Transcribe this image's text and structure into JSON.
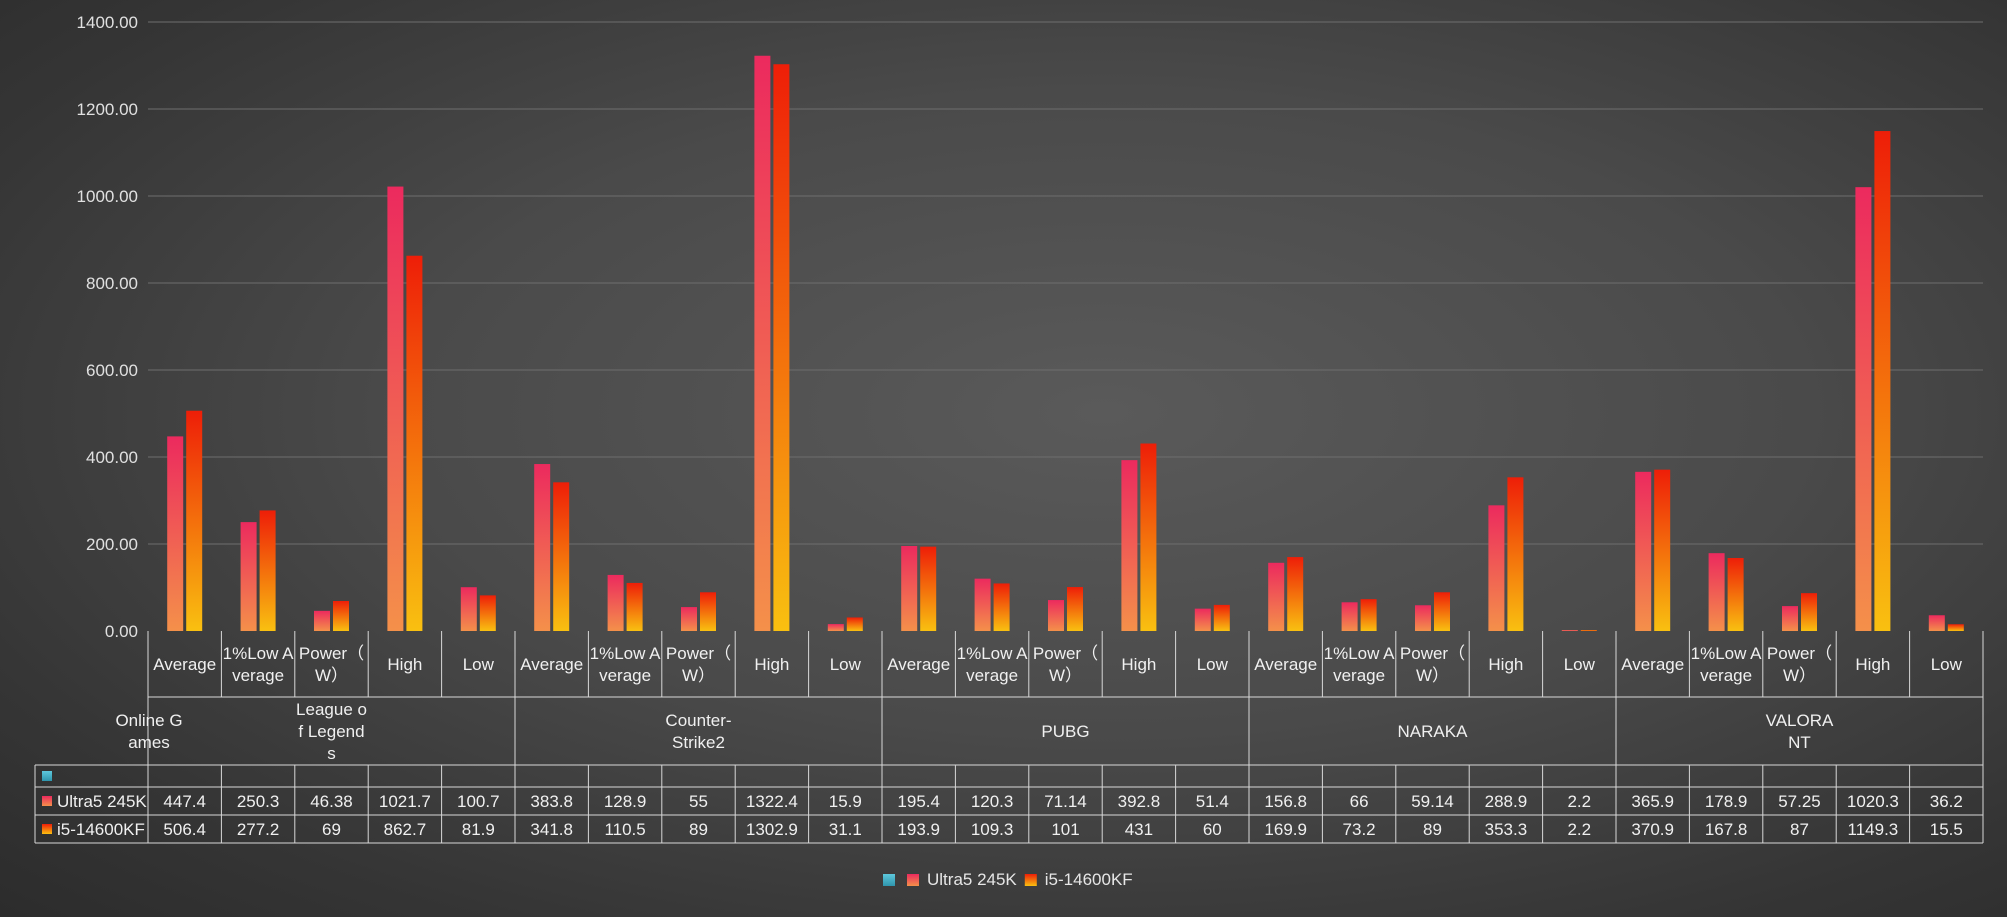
{
  "chart_data": {
    "type": "bar",
    "ylim": [
      0,
      1400
    ],
    "yticks": [
      "0.00",
      "200.00",
      "400.00",
      "600.00",
      "800.00",
      "1000.00",
      "1200.00",
      "1400.00"
    ],
    "grid": true,
    "table_header_label": "Online Games",
    "table_header_lines": [
      "Online G",
      "ames"
    ],
    "groups": [
      {
        "name": "League of Legends",
        "label_lines": [
          "League o",
          "f Legend",
          "s"
        ]
      },
      {
        "name": "Counter-Strike2",
        "label_lines": [
          "Counter-",
          "Strike2"
        ]
      },
      {
        "name": "PUBG",
        "label_lines": [
          "PUBG"
        ]
      },
      {
        "name": "NARAKA",
        "label_lines": [
          "NARAKA"
        ]
      },
      {
        "name": "VALORANT",
        "label_lines": [
          "VALORA",
          "NT"
        ]
      }
    ],
    "metrics": [
      {
        "name": "Average",
        "label_lines": [
          "Average"
        ]
      },
      {
        "name": "1%Low Average",
        "label_lines": [
          "1%Low A",
          "verage"
        ]
      },
      {
        "name": "Power（W）",
        "label_lines": [
          "Power（",
          "W）"
        ]
      },
      {
        "name": "High",
        "label_lines": [
          "High"
        ]
      },
      {
        "name": "Low",
        "label_lines": [
          "Low"
        ]
      }
    ],
    "series": [
      {
        "name": "",
        "color": "#4bacc6",
        "values": [
          null,
          null,
          null,
          null,
          null,
          null,
          null,
          null,
          null,
          null,
          null,
          null,
          null,
          null,
          null,
          null,
          null,
          null,
          null,
          null,
          null,
          null,
          null,
          null,
          null
        ]
      },
      {
        "name": "Ultra5 245K",
        "color": "#f04c5c",
        "values": [
          "447.4",
          "250.3",
          "46.38",
          "1021.7",
          "100.7",
          "383.8",
          "128.9",
          "55",
          "1322.4",
          "15.9",
          "195.4",
          "120.3",
          "71.14",
          "392.8",
          "51.4",
          "156.8",
          "66",
          "59.14",
          "288.9",
          "2.2",
          "365.9",
          "178.9",
          "57.25",
          "1020.3",
          "36.2"
        ]
      },
      {
        "name": "i5-14600KF",
        "color": "#f07a10",
        "values": [
          "506.4",
          "277.2",
          "69",
          "862.7",
          "81.9",
          "341.8",
          "110.5",
          "89",
          "1302.9",
          "31.1",
          "193.9",
          "109.3",
          "101",
          "431",
          "60",
          "169.9",
          "73.2",
          "89",
          "353.3",
          "2.2",
          "370.9",
          "167.8",
          "87",
          "1149.3",
          "15.5"
        ]
      }
    ],
    "legend_position": "bottom"
  }
}
